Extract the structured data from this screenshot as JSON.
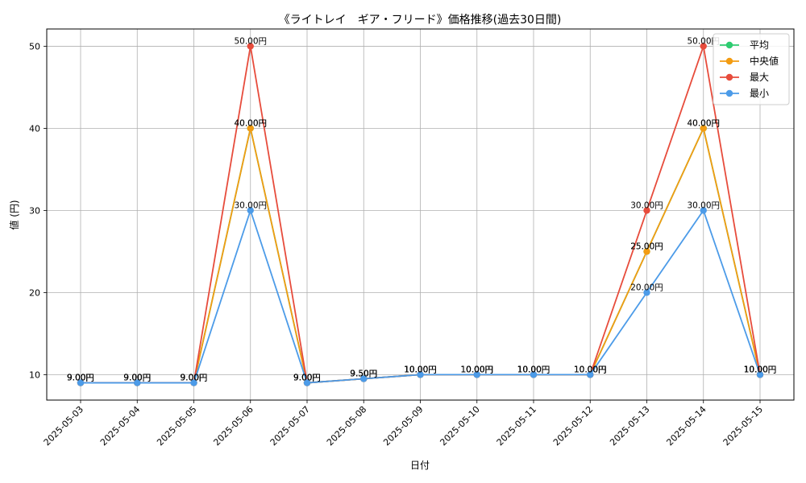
{
  "chart_data": {
    "type": "line",
    "title": "《ライトレイ　ギア・フリード》価格推移(過去30日間)",
    "xlabel": "日付",
    "ylabel": "値 (円)",
    "ylim": [
      6.9,
      52.1
    ],
    "yticks": [
      10,
      20,
      30,
      40,
      50
    ],
    "grid": true,
    "legend_position": "top-right",
    "categories": [
      "2025-05-03",
      "2025-05-04",
      "2025-05-05",
      "2025-05-06",
      "2025-05-07",
      "2025-05-08",
      "2025-05-09",
      "2025-05-10",
      "2025-05-11",
      "2025-05-12",
      "2025-05-13",
      "2025-05-14",
      "2025-05-15"
    ],
    "series": [
      {
        "name": "平均",
        "color": "#2ecc71",
        "values": [
          9,
          9,
          9,
          40,
          9,
          9.5,
          10,
          10,
          10,
          10,
          25,
          40,
          10
        ]
      },
      {
        "name": "中央値",
        "color": "#f39c12",
        "values": [
          9,
          9,
          9,
          40,
          9,
          9.5,
          10,
          10,
          10,
          10,
          25,
          40,
          10
        ]
      },
      {
        "name": "最大",
        "color": "#e74c3c",
        "values": [
          9,
          9,
          9,
          50,
          9,
          9.5,
          10,
          10,
          10,
          10,
          30,
          50,
          10
        ]
      },
      {
        "name": "最小",
        "color": "#4c9be8",
        "values": [
          9,
          9,
          9,
          30,
          9,
          9.5,
          10,
          10,
          10,
          10,
          20,
          30,
          10
        ]
      }
    ],
    "label_suffix": "円"
  }
}
